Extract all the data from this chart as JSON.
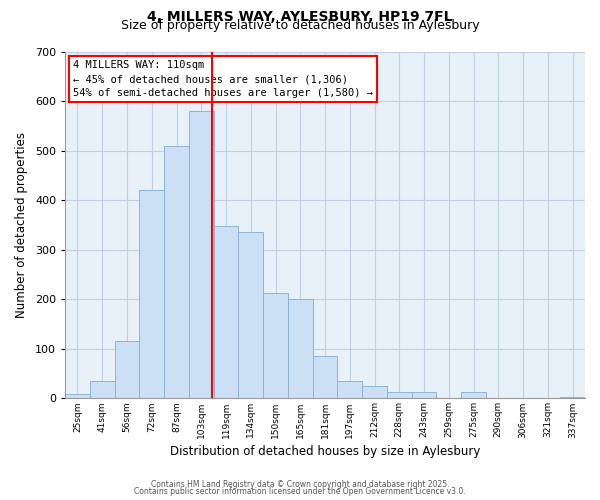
{
  "title": "4, MILLERS WAY, AYLESBURY, HP19 7FL",
  "subtitle": "Size of property relative to detached houses in Aylesbury",
  "xlabel": "Distribution of detached houses by size in Aylesbury",
  "ylabel": "Number of detached properties",
  "bar_labels": [
    "25sqm",
    "41sqm",
    "56sqm",
    "72sqm",
    "87sqm",
    "103sqm",
    "119sqm",
    "134sqm",
    "150sqm",
    "165sqm",
    "181sqm",
    "197sqm",
    "212sqm",
    "228sqm",
    "243sqm",
    "259sqm",
    "275sqm",
    "290sqm",
    "306sqm",
    "321sqm",
    "337sqm"
  ],
  "bar_values": [
    8,
    35,
    115,
    420,
    510,
    580,
    348,
    335,
    213,
    200,
    85,
    35,
    25,
    12,
    12,
    0,
    12,
    0,
    0,
    0,
    3
  ],
  "bar_color": "#cce0f5",
  "bar_edge_color": "#8ab4d8",
  "vline_x": 5.45,
  "vline_color": "red",
  "annotation_title": "4 MILLERS WAY: 110sqm",
  "annotation_line2": "← 45% of detached houses are smaller (1,306)",
  "annotation_line3": "54% of semi-detached houses are larger (1,580) →",
  "annotation_box_color": "#ffffff",
  "annotation_box_edge": "red",
  "ylim": [
    0,
    700
  ],
  "yticks": [
    0,
    100,
    200,
    300,
    400,
    500,
    600,
    700
  ],
  "footer1": "Contains HM Land Registry data © Crown copyright and database right 2025.",
  "footer2": "Contains public sector information licensed under the Open Government Licence v3.0.",
  "bg_color": "#ffffff",
  "plot_bg_color": "#e8f0f8",
  "grid_color": "#c0d0e4",
  "title_fontsize": 10,
  "subtitle_fontsize": 9,
  "annotation_fontsize": 7.5
}
